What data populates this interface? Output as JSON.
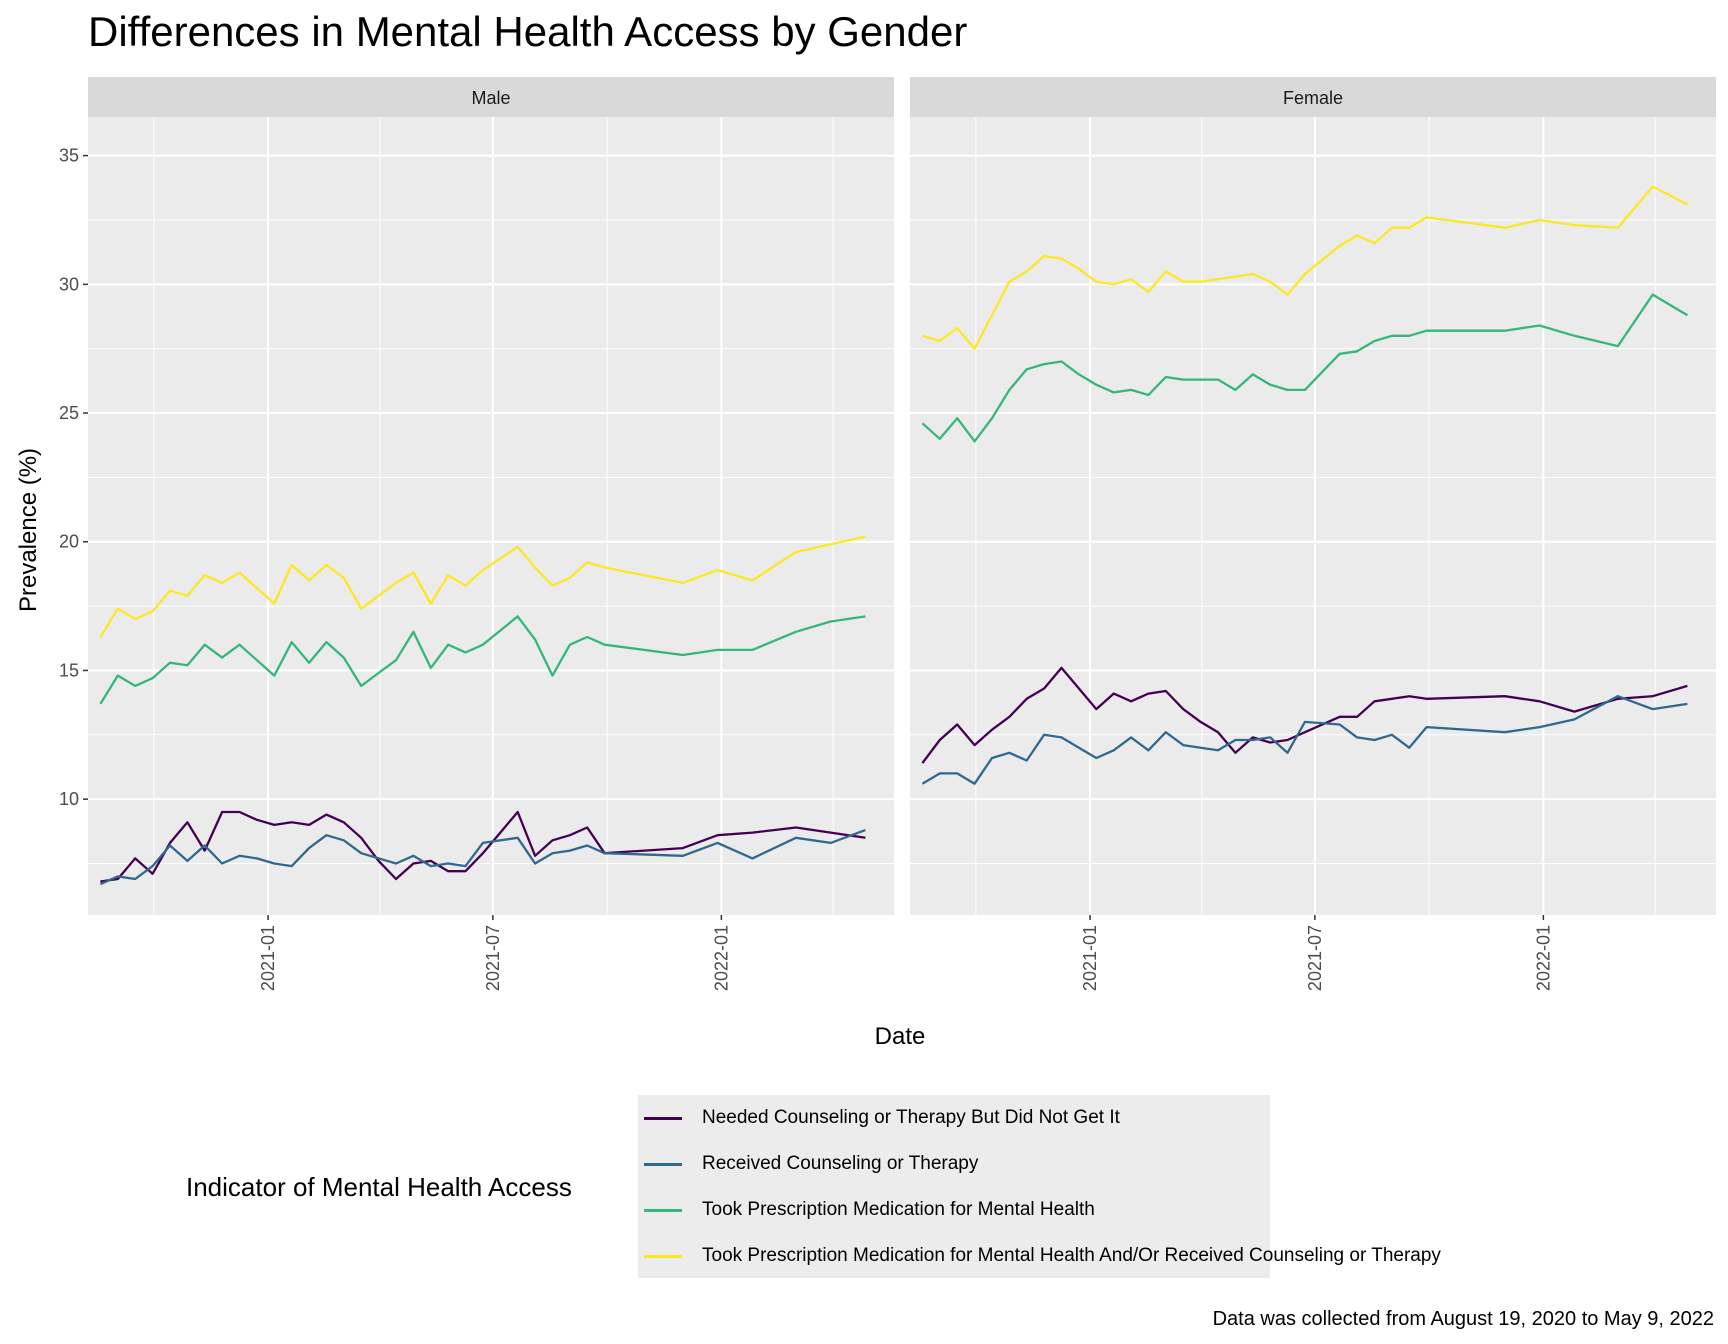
{
  "chart_data": {
    "type": "line",
    "title": "Differences in Mental Health Access by Gender",
    "xlabel": "Date",
    "ylabel": "Prevalence (%)",
    "ylim": [
      5.5,
      36.5
    ],
    "yticks": [
      10,
      15,
      20,
      25,
      30,
      35
    ],
    "xlim": [
      "2020-08-09",
      "2022-05-20"
    ],
    "xticks": [
      {
        "date": "2021-01-01",
        "label": "2021-01"
      },
      {
        "date": "2021-07-01",
        "label": "2021-07"
      },
      {
        "date": "2022-01-01",
        "label": "2022-01"
      }
    ],
    "grid": true,
    "legend": {
      "title": "Indicator of Mental Health Access",
      "position": "bottom",
      "entries": [
        {
          "name": "Needed Counseling or Therapy But Did Not Get It",
          "color": "#440154"
        },
        {
          "name": "Received Counseling or Therapy",
          "color": "#31688e"
        },
        {
          "name": "Took Prescription Medication for Mental Health",
          "color": "#35b779"
        },
        {
          "name": "Took Prescription Medication for Mental Health And/Or Received Counseling or Therapy",
          "color": "#fde725"
        }
      ]
    },
    "caption": "Data was collected from August 19, 2020 to May 9, 2022",
    "panels": [
      {
        "name": "Male",
        "series": [
          {
            "name": "Needed Counseling or Therapy But Did Not Get It",
            "color": "#440154",
            "x": [
              "2020-08-19",
              "2020-09-02",
              "2020-09-16",
              "2020-09-30",
              "2020-10-14",
              "2020-10-28",
              "2020-11-11",
              "2020-11-25",
              "2020-12-09",
              "2020-12-23",
              "2021-01-06",
              "2021-01-20",
              "2021-02-03",
              "2021-02-17",
              "2021-03-03",
              "2021-03-17",
              "2021-03-31",
              "2021-04-14",
              "2021-04-28",
              "2021-05-12",
              "2021-05-26",
              "2021-06-09",
              "2021-06-23",
              "2021-07-21",
              "2021-08-04",
              "2021-08-18",
              "2021-09-01",
              "2021-09-15",
              "2021-09-29",
              "2021-12-01",
              "2021-12-29",
              "2022-01-26",
              "2022-03-02",
              "2022-03-30",
              "2022-04-27"
            ],
            "y": [
              6.8,
              6.9,
              7.7,
              7.1,
              8.3,
              9.1,
              8.0,
              9.5,
              9.5,
              9.2,
              9.0,
              9.1,
              9.0,
              9.4,
              9.1,
              8.5,
              7.6,
              6.9,
              7.5,
              7.6,
              7.2,
              7.2,
              7.9,
              9.5,
              7.8,
              8.4,
              8.6,
              8.9,
              7.9,
              8.1,
              8.6,
              8.7,
              8.9,
              8.7,
              8.5
            ]
          },
          {
            "name": "Received Counseling or Therapy",
            "color": "#31688e",
            "x": [
              "2020-08-19",
              "2020-09-02",
              "2020-09-16",
              "2020-09-30",
              "2020-10-14",
              "2020-10-28",
              "2020-11-11",
              "2020-11-25",
              "2020-12-09",
              "2020-12-23",
              "2021-01-06",
              "2021-01-20",
              "2021-02-03",
              "2021-02-17",
              "2021-03-03",
              "2021-03-17",
              "2021-03-31",
              "2021-04-14",
              "2021-04-28",
              "2021-05-12",
              "2021-05-26",
              "2021-06-09",
              "2021-06-23",
              "2021-07-21",
              "2021-08-04",
              "2021-08-18",
              "2021-09-01",
              "2021-09-15",
              "2021-09-29",
              "2021-12-01",
              "2021-12-29",
              "2022-01-26",
              "2022-03-02",
              "2022-03-30",
              "2022-04-27"
            ],
            "y": [
              6.7,
              7.0,
              6.9,
              7.4,
              8.2,
              7.6,
              8.2,
              7.5,
              7.8,
              7.7,
              7.5,
              7.4,
              8.1,
              8.6,
              8.4,
              7.9,
              7.7,
              7.5,
              7.8,
              7.4,
              7.5,
              7.4,
              8.3,
              8.5,
              7.5,
              7.9,
              8.0,
              8.2,
              7.9,
              7.8,
              8.3,
              7.7,
              8.5,
              8.3,
              8.8
            ]
          },
          {
            "name": "Took Prescription Medication for Mental Health",
            "color": "#35b779",
            "x": [
              "2020-08-19",
              "2020-09-02",
              "2020-09-16",
              "2020-09-30",
              "2020-10-14",
              "2020-10-28",
              "2020-11-11",
              "2020-11-25",
              "2020-12-09",
              "2020-12-23",
              "2021-01-06",
              "2021-01-20",
              "2021-02-03",
              "2021-02-17",
              "2021-03-03",
              "2021-03-17",
              "2021-03-31",
              "2021-04-14",
              "2021-04-28",
              "2021-05-12",
              "2021-05-26",
              "2021-06-09",
              "2021-06-23",
              "2021-07-21",
              "2021-08-04",
              "2021-08-18",
              "2021-09-01",
              "2021-09-15",
              "2021-09-29",
              "2021-12-01",
              "2021-12-29",
              "2022-01-26",
              "2022-03-02",
              "2022-03-30",
              "2022-04-27"
            ],
            "y": [
              13.7,
              14.8,
              14.4,
              14.7,
              15.3,
              15.2,
              16.0,
              15.5,
              16.0,
              15.4,
              14.8,
              16.1,
              15.3,
              16.1,
              15.5,
              14.4,
              14.9,
              15.4,
              16.5,
              15.1,
              16.0,
              15.7,
              16.0,
              17.1,
              16.2,
              14.8,
              16.0,
              16.3,
              16.0,
              15.6,
              15.8,
              15.8,
              16.5,
              16.9,
              17.1
            ]
          },
          {
            "name": "Took Prescription Medication for Mental Health And/Or Received Counseling or Therapy",
            "color": "#fde725",
            "x": [
              "2020-08-19",
              "2020-09-02",
              "2020-09-16",
              "2020-09-30",
              "2020-10-14",
              "2020-10-28",
              "2020-11-11",
              "2020-11-25",
              "2020-12-09",
              "2020-12-23",
              "2021-01-06",
              "2021-01-20",
              "2021-02-03",
              "2021-02-17",
              "2021-03-03",
              "2021-03-17",
              "2021-03-31",
              "2021-04-14",
              "2021-04-28",
              "2021-05-12",
              "2021-05-26",
              "2021-06-09",
              "2021-06-23",
              "2021-07-21",
              "2021-08-04",
              "2021-08-18",
              "2021-09-01",
              "2021-09-15",
              "2021-09-29",
              "2021-12-01",
              "2021-12-29",
              "2022-01-26",
              "2022-03-02",
              "2022-03-30",
              "2022-04-27"
            ],
            "y": [
              16.3,
              17.4,
              17.0,
              17.3,
              18.1,
              17.9,
              18.7,
              18.4,
              18.8,
              18.2,
              17.6,
              19.1,
              18.5,
              19.1,
              18.6,
              17.4,
              17.9,
              18.4,
              18.8,
              17.6,
              18.7,
              18.3,
              18.9,
              19.8,
              19.0,
              18.3,
              18.6,
              19.2,
              19.0,
              18.4,
              18.9,
              18.5,
              19.6,
              19.9,
              20.2
            ]
          }
        ]
      },
      {
        "name": "Female",
        "series": [
          {
            "name": "Needed Counseling or Therapy But Did Not Get It",
            "color": "#440154",
            "x": [
              "2020-08-19",
              "2020-09-02",
              "2020-09-16",
              "2020-09-30",
              "2020-10-14",
              "2020-10-28",
              "2020-11-11",
              "2020-11-25",
              "2020-12-09",
              "2020-12-23",
              "2021-01-06",
              "2021-01-20",
              "2021-02-03",
              "2021-02-17",
              "2021-03-03",
              "2021-03-17",
              "2021-03-31",
              "2021-04-14",
              "2021-04-28",
              "2021-05-12",
              "2021-05-26",
              "2021-06-09",
              "2021-06-23",
              "2021-07-21",
              "2021-08-04",
              "2021-08-18",
              "2021-09-01",
              "2021-09-15",
              "2021-09-29",
              "2021-12-01",
              "2021-12-29",
              "2022-01-26",
              "2022-03-02",
              "2022-03-30",
              "2022-04-27"
            ],
            "y": [
              11.4,
              12.3,
              12.9,
              12.1,
              12.7,
              13.2,
              13.9,
              14.3,
              15.1,
              14.3,
              13.5,
              14.1,
              13.8,
              14.1,
              14.2,
              13.5,
              13.0,
              12.6,
              11.8,
              12.4,
              12.2,
              12.3,
              12.6,
              13.2,
              13.2,
              13.8,
              13.9,
              14.0,
              13.9,
              14.0,
              13.8,
              13.4,
              13.9,
              14.0,
              14.4
            ]
          },
          {
            "name": "Received Counseling or Therapy",
            "color": "#31688e",
            "x": [
              "2020-08-19",
              "2020-09-02",
              "2020-09-16",
              "2020-09-30",
              "2020-10-14",
              "2020-10-28",
              "2020-11-11",
              "2020-11-25",
              "2020-12-09",
              "2020-12-23",
              "2021-01-06",
              "2021-01-20",
              "2021-02-03",
              "2021-02-17",
              "2021-03-03",
              "2021-03-17",
              "2021-03-31",
              "2021-04-14",
              "2021-04-28",
              "2021-05-12",
              "2021-05-26",
              "2021-06-09",
              "2021-06-23",
              "2021-07-21",
              "2021-08-04",
              "2021-08-18",
              "2021-09-01",
              "2021-09-15",
              "2021-09-29",
              "2021-12-01",
              "2021-12-29",
              "2022-01-26",
              "2022-03-02",
              "2022-03-30",
              "2022-04-27"
            ],
            "y": [
              10.6,
              11.0,
              11.0,
              10.6,
              11.6,
              11.8,
              11.5,
              12.5,
              12.4,
              12.0,
              11.6,
              11.9,
              12.4,
              11.9,
              12.6,
              12.1,
              12.0,
              11.9,
              12.3,
              12.3,
              12.4,
              11.8,
              13.0,
              12.9,
              12.4,
              12.3,
              12.5,
              12.0,
              12.8,
              12.6,
              12.8,
              13.1,
              14.0,
              13.5,
              13.7
            ]
          },
          {
            "name": "Took Prescription Medication for Mental Health",
            "color": "#35b779",
            "x": [
              "2020-08-19",
              "2020-09-02",
              "2020-09-16",
              "2020-09-30",
              "2020-10-14",
              "2020-10-28",
              "2020-11-11",
              "2020-11-25",
              "2020-12-09",
              "2020-12-23",
              "2021-01-06",
              "2021-01-20",
              "2021-02-03",
              "2021-02-17",
              "2021-03-03",
              "2021-03-17",
              "2021-03-31",
              "2021-04-14",
              "2021-04-28",
              "2021-05-12",
              "2021-05-26",
              "2021-06-09",
              "2021-06-23",
              "2021-07-21",
              "2021-08-04",
              "2021-08-18",
              "2021-09-01",
              "2021-09-15",
              "2021-09-29",
              "2021-12-01",
              "2021-12-29",
              "2022-01-26",
              "2022-03-02",
              "2022-03-30",
              "2022-04-27"
            ],
            "y": [
              24.6,
              24.0,
              24.8,
              23.9,
              24.8,
              25.9,
              26.7,
              26.9,
              27.0,
              26.5,
              26.1,
              25.8,
              25.9,
              25.7,
              26.4,
              26.3,
              26.3,
              26.3,
              25.9,
              26.5,
              26.1,
              25.9,
              25.9,
              27.3,
              27.4,
              27.8,
              28.0,
              28.0,
              28.2,
              28.2,
              28.4,
              28.0,
              27.6,
              29.6,
              28.8
            ]
          },
          {
            "name": "Took Prescription Medication for Mental Health And/Or Received Counseling or Therapy",
            "color": "#fde725",
            "x": [
              "2020-08-19",
              "2020-09-02",
              "2020-09-16",
              "2020-09-30",
              "2020-10-14",
              "2020-10-28",
              "2020-11-11",
              "2020-11-25",
              "2020-12-09",
              "2020-12-23",
              "2021-01-06",
              "2021-01-20",
              "2021-02-03",
              "2021-02-17",
              "2021-03-03",
              "2021-03-17",
              "2021-03-31",
              "2021-04-14",
              "2021-04-28",
              "2021-05-12",
              "2021-05-26",
              "2021-06-09",
              "2021-06-23",
              "2021-07-21",
              "2021-08-04",
              "2021-08-18",
              "2021-09-01",
              "2021-09-15",
              "2021-09-29",
              "2021-12-01",
              "2021-12-29",
              "2022-01-26",
              "2022-03-02",
              "2022-03-30",
              "2022-04-27"
            ],
            "y": [
              28.0,
              27.8,
              28.3,
              27.5,
              28.8,
              30.1,
              30.5,
              31.1,
              31.0,
              30.6,
              30.1,
              30.0,
              30.2,
              29.7,
              30.5,
              30.1,
              30.1,
              30.2,
              30.3,
              30.4,
              30.1,
              29.6,
              30.4,
              31.5,
              31.9,
              31.6,
              32.2,
              32.2,
              32.6,
              32.2,
              32.5,
              32.3,
              32.2,
              33.8,
              33.1
            ]
          }
        ]
      }
    ]
  }
}
